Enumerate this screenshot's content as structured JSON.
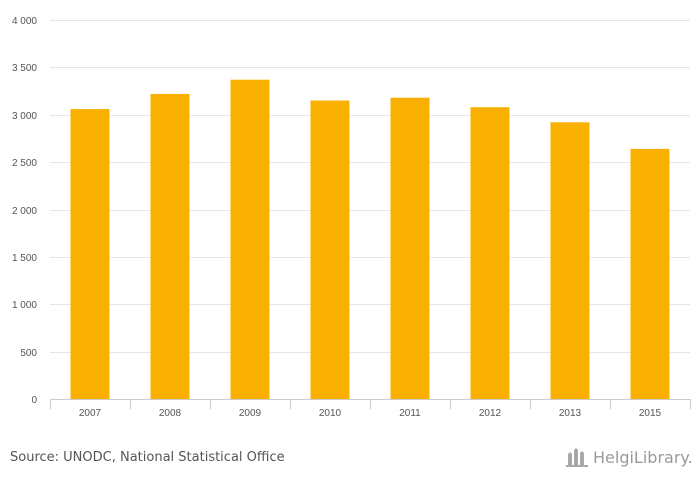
{
  "chart_data": {
    "type": "bar",
    "categories": [
      "2007",
      "2008",
      "2009",
      "2010",
      "2011",
      "2012",
      "2013",
      "2015"
    ],
    "values": [
      3060,
      3220,
      3370,
      3150,
      3180,
      3080,
      2920,
      2640
    ],
    "ylim": [
      0,
      4000
    ],
    "yticks": [
      0,
      500,
      1000,
      1500,
      2000,
      2500,
      3000,
      3500,
      4000
    ],
    "ytick_labels": [
      "0",
      "500",
      "1 000",
      "1 500",
      "2 000",
      "2 500",
      "3 000",
      "3 500",
      "4 000"
    ],
    "grid": true,
    "bar_color": "#f9b000",
    "title": "",
    "xlabel": "",
    "ylabel": ""
  },
  "footer": {
    "source": "Source: UNODC, National Statistical Office",
    "logo_text": "HelgiLibrary.",
    "logo_icon": "library-building-icon"
  }
}
